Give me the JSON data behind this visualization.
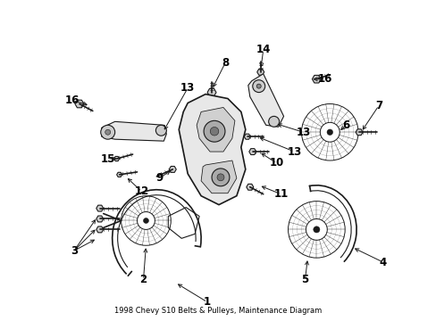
{
  "title": "1998 Chevy S10 Belts & Pulleys, Maintenance Diagram",
  "bg_color": "#ffffff",
  "line_color": "#1a1a1a",
  "label_color": "#000000",
  "fig_width": 4.89,
  "fig_height": 3.6,
  "dpi": 100
}
